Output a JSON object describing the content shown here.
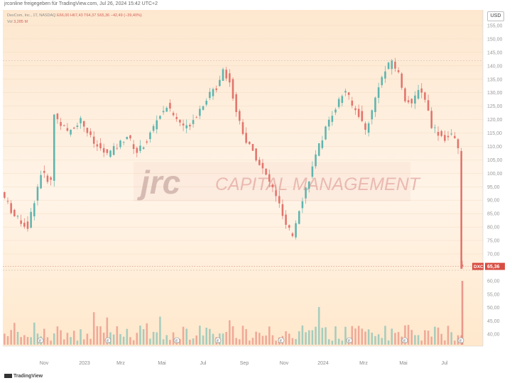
{
  "header": {
    "shared_by": "jrconline freigegeben für TradingView.com, Jul 26, 2024 15:42 UTC+2",
    "currency": "USD"
  },
  "legend": {
    "symbol_info": "DexCom, Inc., 1T, NASDAQ",
    "ohlc": "E66,00 H67,43 T64,37 S65,36 −42,49 (−39,40%)",
    "volume_label": "Vol",
    "volume_value": "3,285 M"
  },
  "watermark": {
    "logo_text": "jrc",
    "company_text": "CAPITAL MANAGEMENT"
  },
  "footer": {
    "brand": "TradingView"
  },
  "colors": {
    "up": "#5fb4ae",
    "down": "#e2746c",
    "bg_top": "#fdecd9",
    "bg_bottom": "#ffe9d2"
  },
  "chart_data": {
    "type": "candlestick",
    "price_axis": {
      "ylim": [
        70,
        155
      ],
      "ticks": [
        "155,00",
        "150,00",
        "145,00",
        "140,00",
        "135,00",
        "130,00",
        "125,00",
        "120,00",
        "115,00",
        "110,00",
        "105,00",
        "100,00",
        "95,00",
        "90,00",
        "85,00",
        "80,00",
        "75,00",
        "70,00"
      ]
    },
    "volume_axis": {
      "ylim": [
        36,
        65
      ],
      "ticks": [
        "60,00",
        "55,00",
        "50,00",
        "45,00",
        "40,00"
      ]
    },
    "x_ticks": [
      "Nov",
      "2023",
      "Mrz",
      "Mai",
      "Jul",
      "Sep",
      "Nov",
      "2024",
      "Mrz",
      "Mai",
      "Jul"
    ],
    "price_label": {
      "symbol": "DXCM",
      "value": "65,36"
    },
    "reference_line": 142,
    "last_price": 65.36,
    "price_path": [
      [
        0,
        93
      ],
      [
        4,
        84
      ],
      [
        8,
        80
      ],
      [
        12,
        100
      ],
      [
        15,
        97
      ],
      [
        16,
        122
      ],
      [
        20,
        115
      ],
      [
        24,
        120
      ],
      [
        28,
        111
      ],
      [
        32,
        107
      ],
      [
        35,
        110
      ],
      [
        38,
        114
      ],
      [
        41,
        108
      ],
      [
        44,
        112
      ],
      [
        47,
        120
      ],
      [
        50,
        125
      ],
      [
        53,
        120
      ],
      [
        56,
        117
      ],
      [
        59,
        122
      ],
      [
        62,
        128
      ],
      [
        65,
        132
      ],
      [
        67,
        139
      ],
      [
        69,
        134
      ],
      [
        71,
        123
      ],
      [
        74,
        112
      ],
      [
        77,
        106
      ],
      [
        80,
        99
      ],
      [
        83,
        92
      ],
      [
        86,
        80
      ],
      [
        88,
        77
      ],
      [
        90,
        87
      ],
      [
        93,
        98
      ],
      [
        96,
        110
      ],
      [
        99,
        120
      ],
      [
        102,
        127
      ],
      [
        104,
        131
      ],
      [
        106,
        125
      ],
      [
        108,
        122
      ],
      [
        110,
        116
      ],
      [
        112,
        123
      ],
      [
        114,
        133
      ],
      [
        116,
        138
      ],
      [
        118,
        142
      ],
      [
        120,
        137
      ],
      [
        122,
        128
      ],
      [
        124,
        125
      ],
      [
        126,
        132
      ],
      [
        128,
        128
      ],
      [
        130,
        118
      ],
      [
        132,
        115
      ],
      [
        134,
        113
      ],
      [
        136,
        114
      ],
      [
        137,
        112
      ],
      [
        138,
        109
      ],
      [
        139,
        65.36
      ]
    ],
    "earnings_markers": [
      "E",
      "E",
      "E",
      "E",
      "E",
      "E",
      "E",
      "E",
      "E",
      "E",
      "E"
    ]
  }
}
